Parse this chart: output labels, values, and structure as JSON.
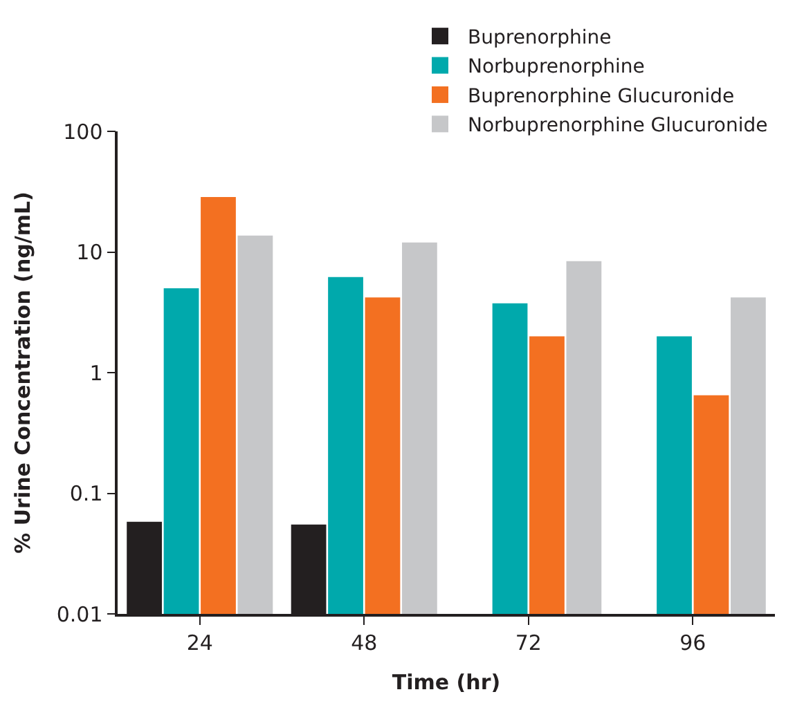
{
  "chart_data": {
    "type": "bar",
    "xlabel": "Time (hr)",
    "ylabel": "% Urine Concentration (ng/mL)",
    "categories": [
      "24",
      "48",
      "72",
      "96"
    ],
    "series": [
      {
        "name": "Buprenorphine",
        "color": "#231f20",
        "values": [
          0.058,
          0.055,
          null,
          null
        ]
      },
      {
        "name": "Norbuprenorphine",
        "color": "#00a9ac",
        "values": [
          5.0,
          6.2,
          3.75,
          2.0
        ]
      },
      {
        "name": "Buprenorphine Glucuronide",
        "color": "#f37021",
        "values": [
          28.5,
          4.2,
          2.0,
          0.65
        ]
      },
      {
        "name": "Norbuprenorphine Glucuronide",
        "color": "#c6c7c9",
        "values": [
          13.7,
          12,
          8.4,
          4.2
        ]
      }
    ],
    "log": "y",
    "ylim": [
      0.01,
      100
    ],
    "yticks": [
      0.01,
      0.1,
      1,
      10,
      100
    ],
    "legend": "top right"
  }
}
